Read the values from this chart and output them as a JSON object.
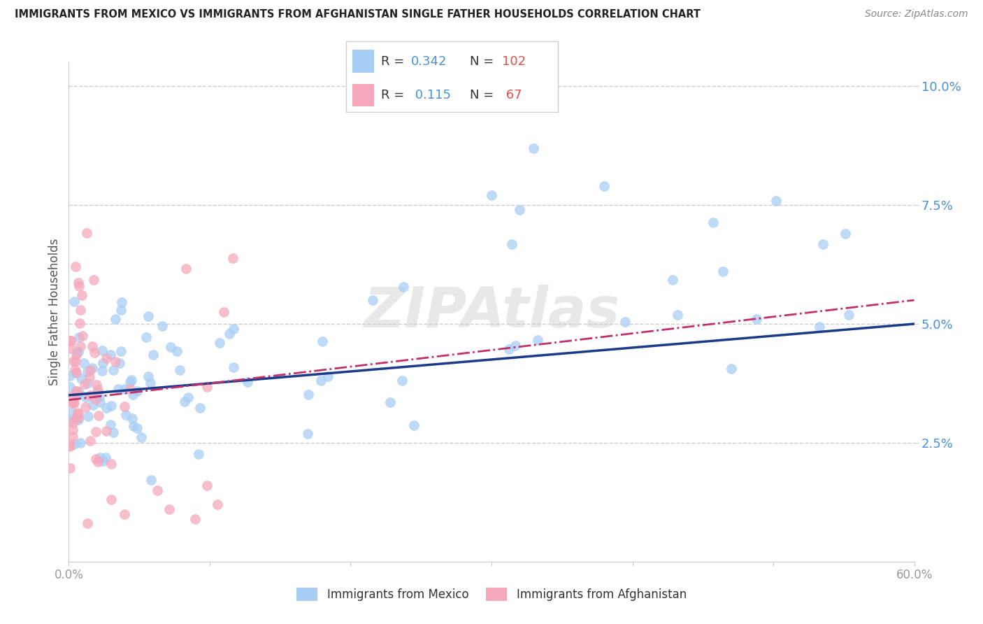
{
  "title": "IMMIGRANTS FROM MEXICO VS IMMIGRANTS FROM AFGHANISTAN SINGLE FATHER HOUSEHOLDS CORRELATION CHART",
  "source": "Source: ZipAtlas.com",
  "ylabel": "Single Father Households",
  "xlim": [
    0.0,
    0.6
  ],
  "ylim": [
    0.0,
    0.105
  ],
  "ytick_vals": [
    0.025,
    0.05,
    0.075,
    0.1
  ],
  "ytick_labels": [
    "2.5%",
    "5.0%",
    "7.5%",
    "10.0%"
  ],
  "xtick_vals": [
    0.0,
    0.1,
    0.2,
    0.3,
    0.4,
    0.5,
    0.6
  ],
  "xtick_show": [
    "0.0%",
    "",
    "",
    "",
    "",
    "",
    "60.0%"
  ],
  "legend_r_mexico": "0.342",
  "legend_n_mexico": "102",
  "legend_r_afghan": "0.115",
  "legend_n_afghan": "67",
  "color_mexico": "#a8cef5",
  "color_afghanistan": "#f5a8bc",
  "trendline_mexico_color": "#1a3a8a",
  "trendline_afghan_color": "#c0306a",
  "background_color": "#ffffff",
  "grid_color": "#cccccc",
  "tick_color_y": "#4a90d9",
  "tick_color_x": "#999999",
  "ylabel_color": "#555555",
  "title_color": "#222222",
  "source_color": "#888888"
}
